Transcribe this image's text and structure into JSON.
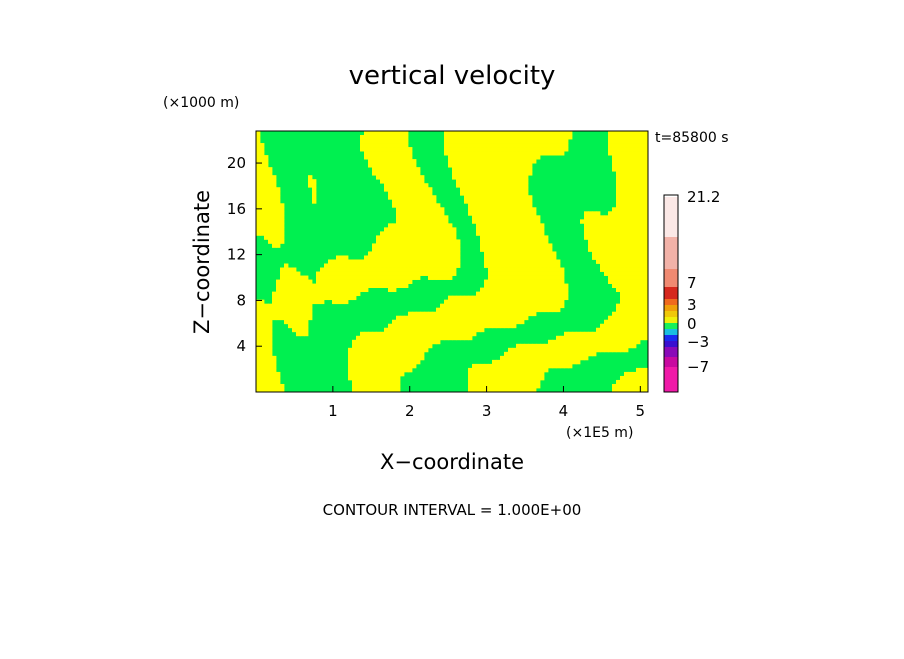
{
  "chart_data": {
    "type": "heatmap",
    "title": "vertical velocity",
    "xlabel": "X−coordinate",
    "ylabel": "Z−coordinate",
    "x_unit": "(×1E5 m)",
    "y_unit": "(×1000 m)",
    "time_label": "t=85800 s",
    "footer": "CONTOUR INTERVAL = 1.000E+00",
    "x_ticks": [
      "1",
      "2",
      "3",
      "4",
      "5"
    ],
    "y_ticks": [
      "4",
      "8",
      "12",
      "16",
      "20"
    ],
    "xlim": [
      0,
      5.1
    ],
    "ylim": [
      0,
      22.8
    ],
    "grid": false,
    "legend": "right",
    "colorbar": {
      "tick_labels": [
        "21.2",
        "7",
        "3",
        "0",
        "−3",
        "−7"
      ],
      "colors": [
        "#f01aa8",
        "#c80aa0",
        "#8a0ab8",
        "#3a10d0",
        "#1a2cf0",
        "#1abfe0",
        "#19f05a",
        "#f0f00a",
        "#f0c80a",
        "#f0a00a",
        "#f06a1e",
        "#d6281e",
        "#f08a72",
        "#f2b2a8",
        "#fbe8e6"
      ]
    },
    "field": {
      "positive_color": "#ffff00",
      "negative_color": "#00f050"
    }
  }
}
